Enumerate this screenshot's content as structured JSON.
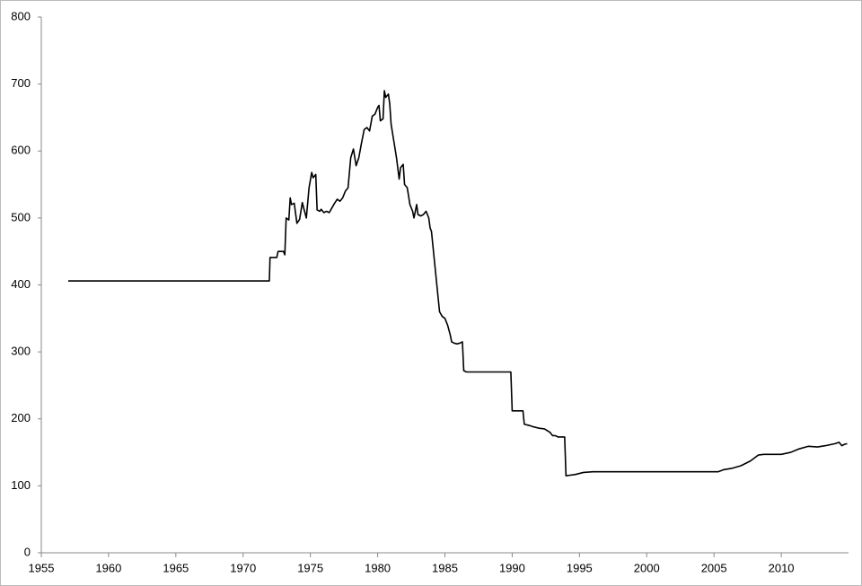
{
  "chart_data": {
    "type": "line",
    "color": "#000000",
    "x": [
      1957.0,
      1971.95,
      1972.0,
      1972.5,
      1972.6,
      1973.0,
      1973.1,
      1973.2,
      1973.4,
      1973.5,
      1973.6,
      1973.8,
      1974.0,
      1974.2,
      1974.4,
      1974.5,
      1974.7,
      1974.9,
      1975.1,
      1975.2,
      1975.4,
      1975.5,
      1975.7,
      1975.8,
      1976.0,
      1976.2,
      1976.4,
      1976.6,
      1976.8,
      1977.0,
      1977.2,
      1977.4,
      1977.6,
      1977.8,
      1978.0,
      1978.2,
      1978.4,
      1978.6,
      1978.8,
      1979.0,
      1979.2,
      1979.4,
      1979.6,
      1979.8,
      1980.0,
      1980.1,
      1980.2,
      1980.4,
      1980.5,
      1980.6,
      1980.8,
      1980.9,
      1981.0,
      1981.2,
      1981.4,
      1981.6,
      1981.7,
      1981.9,
      1982.0,
      1982.2,
      1982.4,
      1982.6,
      1982.7,
      1982.9,
      1983.0,
      1983.2,
      1983.4,
      1983.6,
      1983.8,
      1983.9,
      1984.0,
      1984.2,
      1984.4,
      1984.5,
      1984.6,
      1984.8,
      1985.0,
      1985.2,
      1985.4,
      1985.5,
      1985.7,
      1985.9,
      1986.1,
      1986.3,
      1986.4,
      1986.6,
      1989.9,
      1990.0,
      1990.8,
      1990.9,
      1991.3,
      1991.6,
      1992.0,
      1992.4,
      1992.8,
      1993.0,
      1993.2,
      1993.4,
      1993.9,
      1994.0,
      1994.7,
      1995.3,
      1996.0,
      2005.3,
      2005.7,
      2006.3,
      2007.0,
      2007.7,
      2008.3,
      2008.7,
      2010.0,
      2010.7,
      2011.3,
      2012.0,
      2012.7,
      2013.3,
      2014.0,
      2014.3,
      2014.5,
      2014.7,
      2014.9
    ],
    "values": [
      406,
      406,
      441,
      441,
      450,
      450,
      445,
      500,
      497,
      530,
      520,
      522,
      492,
      498,
      523,
      515,
      500,
      545,
      568,
      560,
      565,
      512,
      510,
      513,
      508,
      510,
      508,
      515,
      522,
      528,
      525,
      530,
      540,
      545,
      590,
      603,
      578,
      590,
      612,
      632,
      635,
      630,
      652,
      655,
      665,
      668,
      645,
      648,
      690,
      680,
      685,
      670,
      640,
      615,
      590,
      558,
      575,
      580,
      550,
      545,
      520,
      510,
      500,
      520,
      505,
      503,
      505,
      510,
      500,
      485,
      480,
      440,
      400,
      380,
      360,
      353,
      350,
      340,
      325,
      315,
      313,
      312,
      313,
      315,
      272,
      270,
      270,
      212,
      212,
      192,
      190,
      188,
      186,
      185,
      180,
      175,
      175,
      173,
      173,
      115,
      117,
      120,
      121,
      121,
      124,
      126,
      130,
      137,
      146,
      147,
      147,
      150,
      155,
      159,
      158,
      160,
      163,
      165,
      160,
      162,
      163
    ],
    "xlim": [
      1955,
      2015
    ],
    "xticks": [
      1955,
      1960,
      1965,
      1970,
      1975,
      1980,
      1985,
      1990,
      1995,
      2000,
      2005,
      2010
    ],
    "ylim": [
      0,
      800
    ],
    "yticks": [
      0,
      100,
      200,
      300,
      400,
      500,
      600,
      700,
      800
    ]
  }
}
